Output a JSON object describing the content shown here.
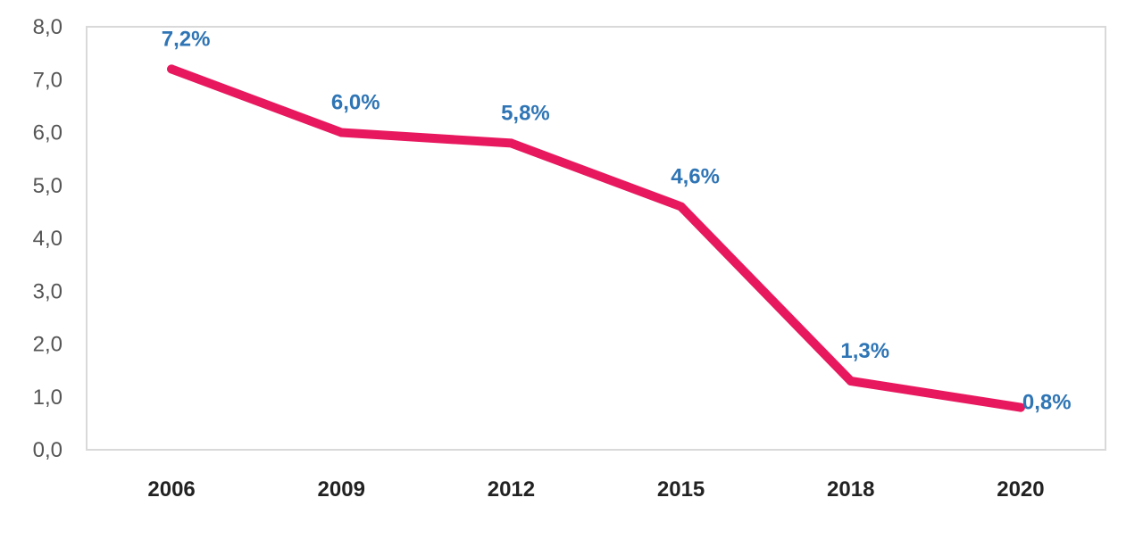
{
  "chart_data": {
    "type": "line",
    "title": "",
    "xlabel": "",
    "ylabel": "",
    "categories": [
      "2006",
      "2009",
      "2012",
      "2015",
      "2018",
      "2020"
    ],
    "series": [
      {
        "values": [
          7.2,
          6.0,
          5.8,
          4.6,
          1.3,
          0.8
        ],
        "data_labels": [
          "7,2%",
          "6,0%",
          "5,8%",
          "4,6%",
          "1,3%",
          "0,8%"
        ]
      }
    ],
    "ylim": [
      0,
      8
    ],
    "yticks": [
      0,
      1,
      2,
      3,
      4,
      5,
      6,
      7,
      8
    ],
    "ytick_labels": [
      "0,0",
      "1,0",
      "2,0",
      "3,0",
      "4,0",
      "5,0",
      "6,0",
      "7,0",
      "8,0"
    ],
    "grid": false,
    "legend": "none",
    "colors": {
      "line": "#e8185f",
      "data_label": "#2f75b5",
      "frame": "#d9d9d9",
      "ytick": "#555555",
      "xtick": "#222222"
    }
  }
}
